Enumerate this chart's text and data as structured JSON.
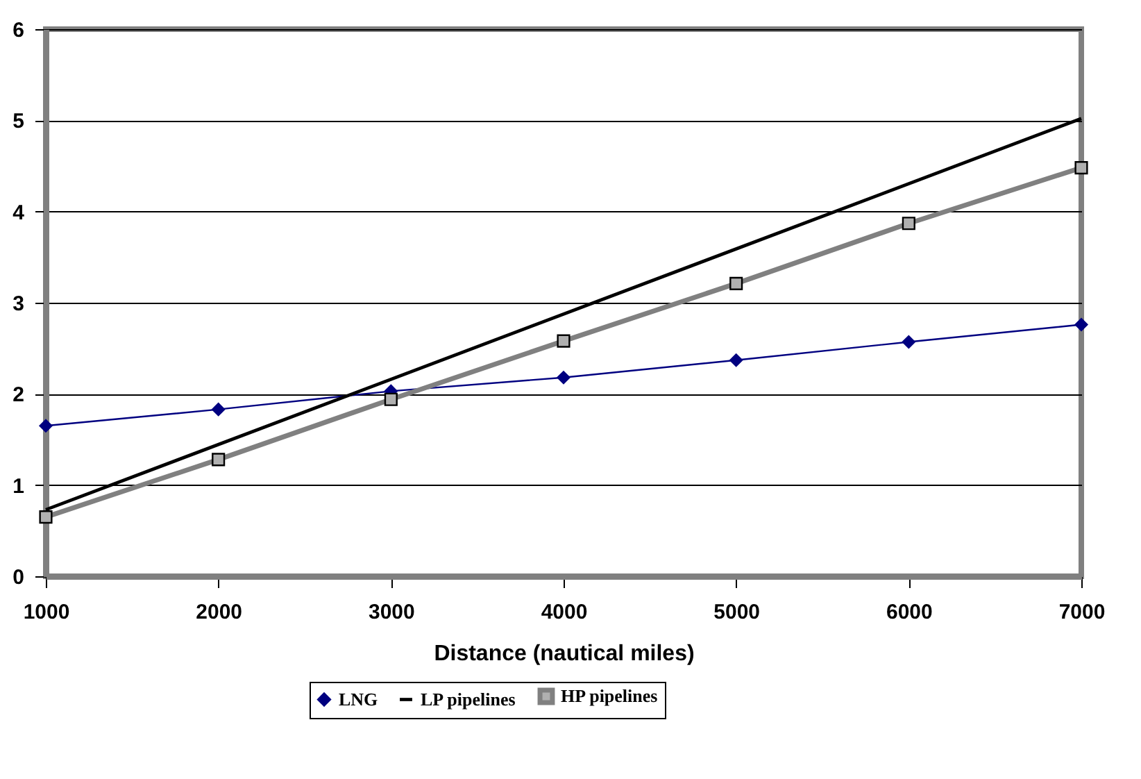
{
  "chart_data": {
    "type": "line",
    "xlabel": "Distance (nautical miles)",
    "xlim": [
      1000,
      7000
    ],
    "xticks": [
      1000,
      2000,
      3000,
      4000,
      5000,
      6000,
      7000
    ],
    "ylim": [
      0,
      6
    ],
    "yticks": [
      0,
      1,
      2,
      3,
      4,
      5,
      6
    ],
    "grid": "y",
    "legend": "bottom",
    "series": [
      {
        "name": "LNG",
        "color": "#000080",
        "marker": "diamond",
        "x": [
          1000,
          2000,
          3000,
          4000,
          5000,
          6000,
          7000
        ],
        "values": [
          1.65,
          1.83,
          2.03,
          2.18,
          2.37,
          2.57,
          2.76
        ]
      },
      {
        "name": "LP pipelines",
        "color": "#000000",
        "marker": "none",
        "x": [
          1000,
          7000
        ],
        "values": [
          0.73,
          5.02
        ]
      },
      {
        "name": "HP pipelines",
        "color": "#808080",
        "marker": "square",
        "x": [
          1000,
          2000,
          3000,
          4000,
          5000,
          6000,
          7000
        ],
        "values": [
          0.65,
          1.28,
          1.94,
          2.58,
          3.21,
          3.87,
          4.48
        ]
      }
    ]
  }
}
